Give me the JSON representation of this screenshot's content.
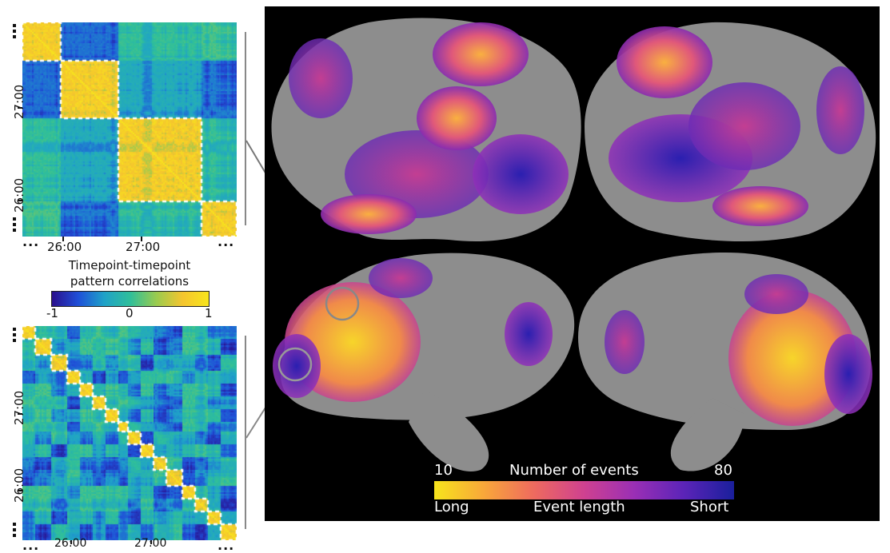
{
  "matrices": {
    "top": {
      "x_ticks": [
        "26:00",
        "27:00"
      ],
      "y_ticks": [
        "27:00",
        "26:00"
      ],
      "ellipsis": "..."
    },
    "bottom": {
      "x_ticks": [
        "26:00",
        "27:00"
      ],
      "y_ticks": [
        "27:00",
        "26:00"
      ],
      "ellipsis": "..."
    }
  },
  "colorbar": {
    "title_line1": "Timepoint-timepoint",
    "title_line2": "pattern correlations",
    "min_label": "-1",
    "mid_label": "0",
    "max_label": "1",
    "colors": [
      "#2a0f8c",
      "#1f4fd8",
      "#1fa2c8",
      "#2fbf9a",
      "#9acb4e",
      "#f5c52e",
      "#f7e51c"
    ]
  },
  "brain_legend": {
    "left_top": "10",
    "center_top": "Number of events",
    "right_top": "80",
    "left_bottom": "Long",
    "center_bottom": "Event length",
    "right_bottom": "Short",
    "colors": [
      "#f7e41c",
      "#f9a73a",
      "#ee6a5f",
      "#cf4190",
      "#9a2fb5",
      "#5b24b8",
      "#1a1f9c"
    ]
  },
  "brain_colors": {
    "cortex": "#8d8d8d",
    "background": "#000000"
  }
}
